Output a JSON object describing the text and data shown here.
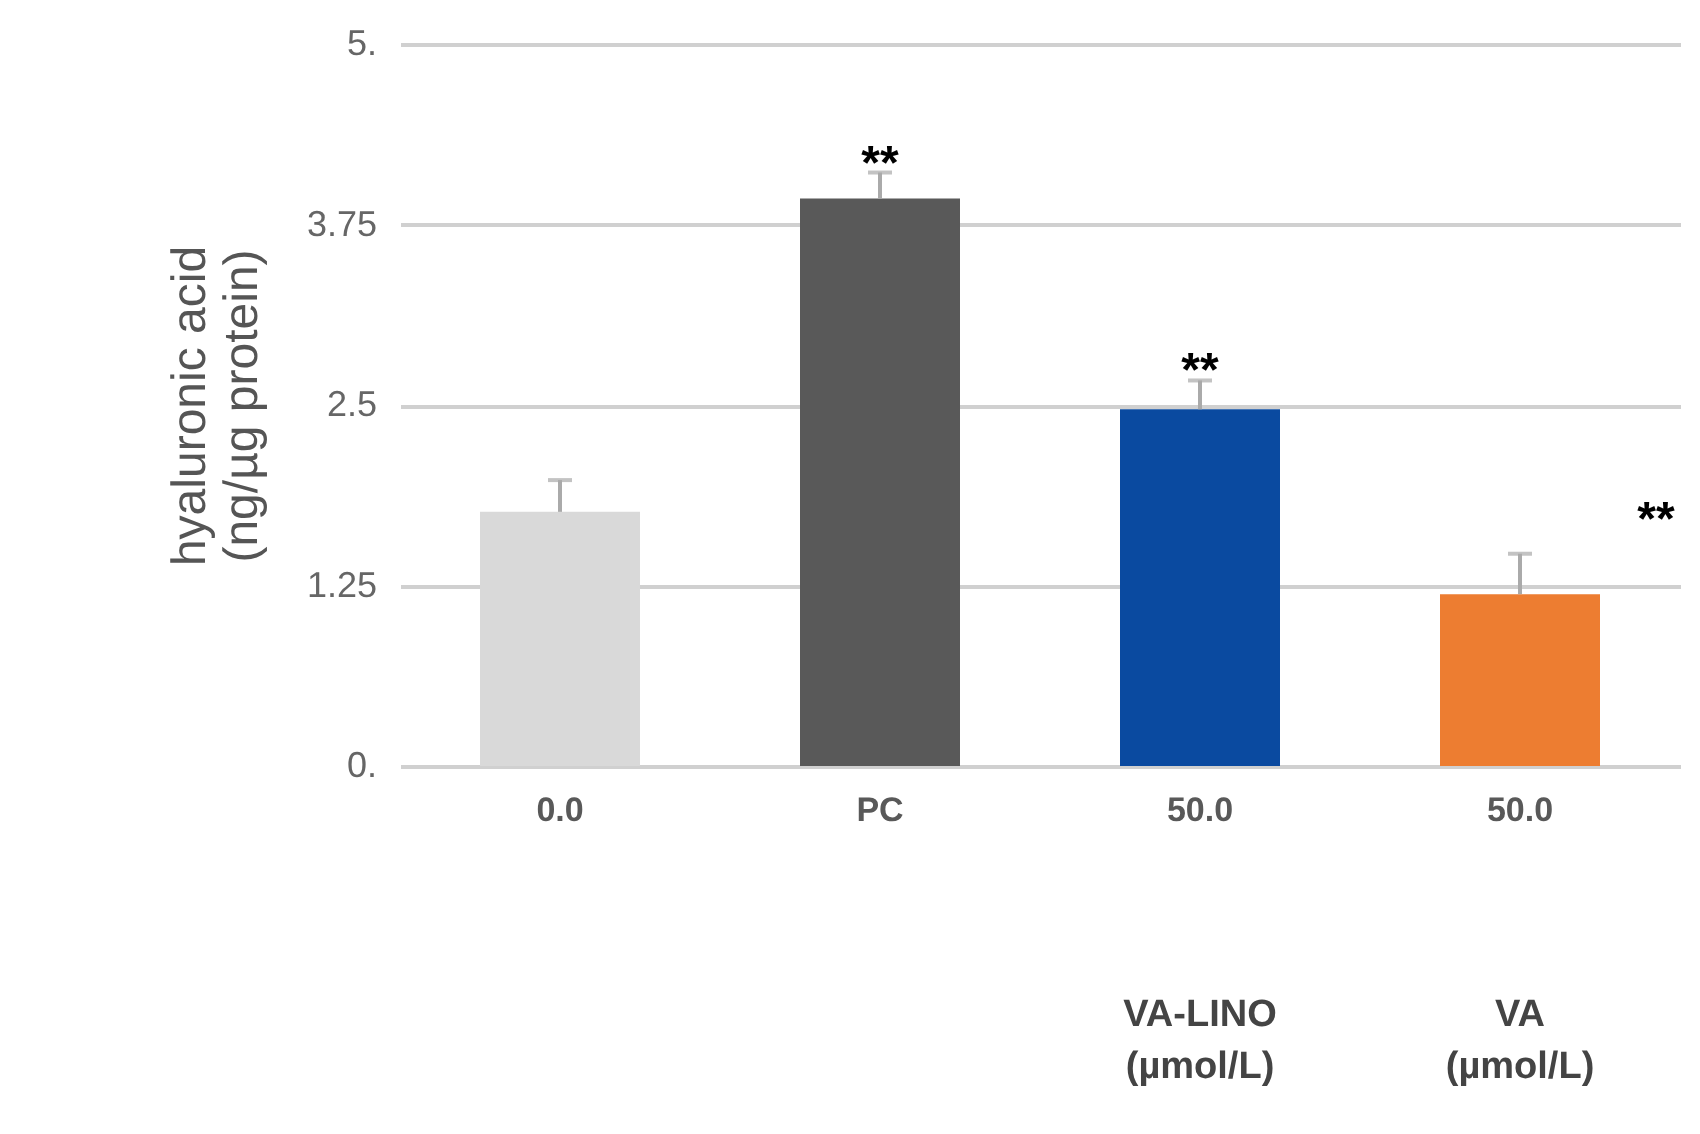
{
  "chart_data": {
    "type": "bar",
    "ylabel": "hyaluronic acid\n(ng/µg protein)",
    "categories": [
      "0.0",
      "PC",
      "50.0",
      "50.0"
    ],
    "values": [
      1.76,
      3.93,
      2.47,
      1.19
    ],
    "colors": [
      "#d9d9d9",
      "#595959",
      "#0a4aa0",
      "#ed7d31"
    ],
    "errors": [
      [
        1.76,
        1.98
      ],
      [
        3.93,
        4.11
      ],
      [
        2.47,
        2.67
      ],
      [
        1.19,
        1.47
      ]
    ],
    "ylim": [
      0,
      5
    ],
    "yticks": [
      {
        "value": 0,
        "label": "0."
      },
      1.25,
      2.5,
      3.75,
      {
        "value": 5,
        "label": "5."
      }
    ],
    "grid": "y",
    "annotations": [
      {
        "text": "**",
        "x": "PC",
        "y": 4.11
      },
      {
        "text": "**",
        "x": "50.0",
        "y": 2.67
      },
      "**",
      "VA-LINO\n(µmol/L)",
      "VA\n(µmol/L)"
    ]
  }
}
